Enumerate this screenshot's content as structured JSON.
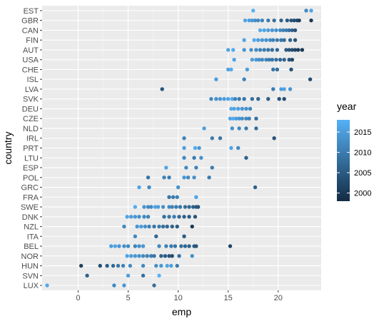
{
  "chart_data": {
    "type": "scatter",
    "xlabel": "emp",
    "ylabel": "country",
    "xlim": [
      -3.6,
      24.3
    ],
    "x_ticks": [
      0,
      5,
      10,
      15,
      20
    ],
    "x_tick_labels": [
      "0",
      "5",
      "10",
      "15",
      "20"
    ],
    "categories": [
      "EST",
      "GBR",
      "CAN",
      "FIN",
      "AUT",
      "USA",
      "CHE",
      "ISL",
      "LVA",
      "SVK",
      "DEU",
      "CZE",
      "NLD",
      "IRL",
      "PRT",
      "LTU",
      "ESP",
      "POL",
      "GRC",
      "FRA",
      "SWE",
      "DNK",
      "NZL",
      "ITA",
      "BEL",
      "NOR",
      "HUN",
      "SVN",
      "LUX"
    ],
    "grid": true,
    "legend": {
      "title": "year",
      "position": "right",
      "type": "colorbar",
      "range": [
        1998,
        2018
      ],
      "ticks": [
        2000,
        2005,
        2010,
        2015
      ],
      "tick_labels": [
        "2000",
        "2005",
        "2010",
        "2015"
      ],
      "low_color": "#132B43",
      "high_color": "#56B1F7"
    },
    "series": [
      {
        "country": "EST",
        "points": [
          [
            17.5,
            2018
          ],
          [
            22.8,
            2012
          ],
          [
            23.3,
            2016
          ]
        ]
      },
      {
        "country": "GBR",
        "points": [
          [
            16.7,
            2016
          ],
          [
            17.1,
            2015
          ],
          [
            17.4,
            2014
          ],
          [
            17.7,
            2013
          ],
          [
            18.0,
            2012
          ],
          [
            18.4,
            2011
          ],
          [
            19.0,
            2010
          ],
          [
            19.6,
            2008
          ],
          [
            20.3,
            2006
          ],
          [
            20.9,
            2005
          ],
          [
            21.3,
            2004
          ],
          [
            21.6,
            2003
          ],
          [
            21.9,
            2002
          ],
          [
            22.1,
            2001
          ],
          [
            23.3,
            2000
          ]
        ]
      },
      {
        "country": "CAN",
        "points": [
          [
            18.2,
            2017
          ],
          [
            18.6,
            2016
          ],
          [
            19.0,
            2015
          ],
          [
            19.4,
            2014
          ],
          [
            19.8,
            2013
          ],
          [
            20.2,
            2012
          ],
          [
            20.5,
            2011
          ],
          [
            20.8,
            2010
          ],
          [
            21.1,
            2008
          ],
          [
            21.4,
            2006
          ],
          [
            21.7,
            2004
          ]
        ]
      },
      {
        "country": "FIN",
        "points": [
          [
            16.6,
            2016
          ],
          [
            17.6,
            2017
          ],
          [
            18.0,
            2015
          ],
          [
            18.4,
            2014
          ],
          [
            18.8,
            2013
          ],
          [
            19.2,
            2012
          ],
          [
            19.5,
            2011
          ],
          [
            19.9,
            2010
          ],
          [
            20.3,
            2009
          ],
          [
            20.6,
            2008
          ],
          [
            21.2,
            2006
          ],
          [
            21.7,
            2004
          ]
        ]
      },
      {
        "country": "AUT",
        "points": [
          [
            15.0,
            2016
          ],
          [
            15.5,
            2017
          ],
          [
            16.6,
            2014
          ],
          [
            17.3,
            2013
          ],
          [
            17.8,
            2012
          ],
          [
            18.2,
            2011
          ],
          [
            18.6,
            2010
          ],
          [
            19.0,
            2009
          ],
          [
            19.4,
            2008
          ],
          [
            19.9,
            2007
          ],
          [
            20.8,
            2005
          ],
          [
            21.1,
            2004
          ],
          [
            21.4,
            2003
          ],
          [
            21.7,
            2002
          ],
          [
            22.0,
            2001
          ],
          [
            22.4,
            2000
          ]
        ]
      },
      {
        "country": "USA",
        "points": [
          [
            15.6,
            2016
          ],
          [
            17.4,
            2015
          ],
          [
            17.8,
            2014
          ],
          [
            18.1,
            2013
          ],
          [
            18.4,
            2012
          ],
          [
            18.8,
            2011
          ],
          [
            19.1,
            2010
          ],
          [
            19.4,
            2009
          ],
          [
            19.8,
            2008
          ],
          [
            20.2,
            2007
          ],
          [
            20.6,
            2006
          ],
          [
            21.1,
            2004
          ],
          [
            21.4,
            2002
          ]
        ]
      },
      {
        "country": "CHE",
        "points": [
          [
            15.0,
            2016
          ],
          [
            15.3,
            2017
          ],
          [
            16.9,
            2015
          ],
          [
            19.5,
            2009
          ],
          [
            19.9,
            2008
          ],
          [
            21.3,
            2004
          ]
        ]
      },
      {
        "country": "ISL",
        "points": [
          [
            13.8,
            2015
          ],
          [
            16.6,
            2011
          ],
          [
            23.2,
            2003
          ]
        ]
      },
      {
        "country": "LVA",
        "points": [
          [
            8.4,
            2004
          ],
          [
            19.5,
            2010
          ],
          [
            20.3,
            2015
          ],
          [
            20.6,
            2016
          ],
          [
            21.2,
            2014
          ]
        ]
      },
      {
        "country": "SVK",
        "points": [
          [
            13.3,
            2012
          ],
          [
            13.8,
            2013
          ],
          [
            14.2,
            2014
          ],
          [
            14.6,
            2015
          ],
          [
            15.0,
            2016
          ],
          [
            15.4,
            2017
          ],
          [
            15.7,
            2011
          ],
          [
            16.1,
            2010
          ],
          [
            16.6,
            2009
          ],
          [
            17.4,
            2008
          ],
          [
            18.0,
            2007
          ],
          [
            19.0,
            2006
          ],
          [
            20.1,
            2004
          ],
          [
            20.6,
            2003
          ]
        ]
      },
      {
        "country": "DEU",
        "points": [
          [
            15.3,
            2017
          ],
          [
            15.6,
            2016
          ],
          [
            16.0,
            2015
          ],
          [
            16.4,
            2014
          ],
          [
            16.8,
            2013
          ],
          [
            17.2,
            2012
          ]
        ]
      },
      {
        "country": "CZE",
        "points": [
          [
            15.2,
            2016
          ],
          [
            15.5,
            2017
          ],
          [
            15.8,
            2015
          ],
          [
            16.1,
            2014
          ],
          [
            16.4,
            2013
          ],
          [
            16.8,
            2012
          ],
          [
            17.1,
            2011
          ],
          [
            17.8,
            2008
          ]
        ]
      },
      {
        "country": "NLD",
        "points": [
          [
            12.6,
            2015
          ],
          [
            15.4,
            2013
          ],
          [
            16.1,
            2012
          ],
          [
            16.8,
            2010
          ],
          [
            17.8,
            2008
          ]
        ]
      },
      {
        "country": "IRL",
        "points": [
          [
            10.6,
            2011
          ],
          [
            13.4,
            2010
          ],
          [
            14.2,
            2009
          ],
          [
            19.6,
            2004
          ]
        ]
      },
      {
        "country": "PRT",
        "points": [
          [
            10.6,
            2015
          ],
          [
            11.7,
            2017
          ],
          [
            12.1,
            2014
          ],
          [
            15.3,
            2016
          ],
          [
            16.0,
            2012
          ]
        ]
      },
      {
        "country": "LTU",
        "points": [
          [
            10.6,
            2012
          ],
          [
            11.6,
            2010
          ],
          [
            12.3,
            2013
          ],
          [
            16.8,
            2006
          ]
        ]
      },
      {
        "country": "ESP",
        "points": [
          [
            8.8,
            2016
          ],
          [
            10.8,
            2012
          ],
          [
            11.8,
            2011
          ],
          [
            13.4,
            2010
          ]
        ]
      },
      {
        "country": "POL",
        "points": [
          [
            7.0,
            2009
          ],
          [
            8.6,
            2011
          ],
          [
            9.1,
            2010
          ],
          [
            10.6,
            2014
          ],
          [
            11.0,
            2012
          ],
          [
            11.6,
            2013
          ],
          [
            13.1,
            2010
          ]
        ]
      },
      {
        "country": "GRC",
        "points": [
          [
            6.1,
            2016
          ],
          [
            7.1,
            2012
          ],
          [
            10.0,
            2013
          ],
          [
            17.7,
            2006
          ]
        ]
      },
      {
        "country": "FRA",
        "points": [
          [
            9.1,
            2009
          ],
          [
            9.5,
            2010
          ],
          [
            9.9,
            2011
          ],
          [
            11.8,
            2016
          ]
        ]
      },
      {
        "country": "SWE",
        "points": [
          [
            5.7,
            2017
          ],
          [
            6.6,
            2014
          ],
          [
            7.0,
            2012
          ],
          [
            7.3,
            2012
          ],
          [
            7.7,
            2016
          ],
          [
            8.0,
            2015
          ],
          [
            8.5,
            2013
          ],
          [
            9.1,
            2012
          ],
          [
            9.4,
            2011
          ],
          [
            9.8,
            2010
          ],
          [
            10.2,
            2009
          ],
          [
            10.7,
            2008
          ],
          [
            11.1,
            2007
          ],
          [
            11.5,
            2006
          ],
          [
            11.8,
            2005
          ],
          [
            12.0,
            2004
          ]
        ]
      },
      {
        "country": "DNK",
        "points": [
          [
            4.9,
            2016
          ],
          [
            5.3,
            2015
          ],
          [
            5.7,
            2014
          ],
          [
            6.1,
            2013
          ],
          [
            6.6,
            2012
          ],
          [
            7.0,
            2011
          ],
          [
            8.6,
            2008
          ],
          [
            9.1,
            2009
          ],
          [
            9.6,
            2010
          ],
          [
            10.1,
            2007
          ],
          [
            10.6,
            2006
          ],
          [
            11.1,
            2005
          ],
          [
            11.7,
            2004
          ]
        ]
      },
      {
        "country": "NZL",
        "points": [
          [
            4.6,
            2012
          ],
          [
            5.9,
            2014
          ],
          [
            6.3,
            2015
          ],
          [
            6.7,
            2013
          ],
          [
            7.1,
            2011
          ],
          [
            7.6,
            2009
          ],
          [
            8.1,
            2010
          ],
          [
            8.5,
            2008
          ],
          [
            8.9,
            2007
          ],
          [
            9.4,
            2006
          ],
          [
            9.9,
            2005
          ],
          [
            11.4,
            2000
          ]
        ]
      },
      {
        "country": "ITA",
        "points": [
          [
            5.7,
            2012
          ],
          [
            7.8,
            2007
          ],
          [
            10.6,
            2005
          ]
        ]
      },
      {
        "country": "BEL",
        "points": [
          [
            3.3,
            2015
          ],
          [
            3.7,
            2016
          ],
          [
            4.1,
            2014
          ],
          [
            4.6,
            2013
          ],
          [
            5.0,
            2012
          ],
          [
            5.7,
            2011
          ],
          [
            6.1,
            2013
          ],
          [
            6.5,
            2014
          ],
          [
            8.1,
            2012
          ],
          [
            8.8,
            2011
          ],
          [
            9.3,
            2010
          ],
          [
            9.7,
            2009
          ],
          [
            10.3,
            2008
          ],
          [
            10.7,
            2007
          ],
          [
            11.1,
            2006
          ],
          [
            11.6,
            2005
          ],
          [
            11.8,
            2004
          ],
          [
            15.2,
            2002
          ]
        ]
      },
      {
        "country": "NOR",
        "points": [
          [
            4.9,
            2016
          ],
          [
            5.3,
            2015
          ],
          [
            5.7,
            2014
          ],
          [
            6.1,
            2013
          ],
          [
            6.5,
            2012
          ],
          [
            6.9,
            2011
          ],
          [
            7.3,
            2010
          ],
          [
            7.6,
            2009
          ],
          [
            8.3,
            2006
          ],
          [
            8.7,
            2005
          ],
          [
            9.1,
            2004
          ],
          [
            9.4,
            2003
          ],
          [
            10.1,
            2008
          ],
          [
            11.4,
            2013
          ]
        ]
      },
      {
        "country": "HUN",
        "points": [
          [
            0.3,
            2001
          ],
          [
            2.2,
            2003
          ],
          [
            2.9,
            2005
          ],
          [
            3.5,
            2007
          ],
          [
            4.0,
            2009
          ],
          [
            4.5,
            2011
          ],
          [
            5.2,
            2012
          ],
          [
            6.5,
            2012
          ],
          [
            7.8,
            2013
          ],
          [
            8.3,
            2014
          ],
          [
            8.9,
            2016
          ],
          [
            9.3,
            2015
          ],
          [
            9.9,
            2010
          ]
        ]
      },
      {
        "country": "SVN",
        "points": [
          [
            0.9,
            2006
          ],
          [
            5.0,
            2015
          ],
          [
            6.5,
            2008
          ],
          [
            8.1,
            2018
          ]
        ]
      },
      {
        "country": "LUX",
        "points": [
          [
            -3.1,
            2017
          ],
          [
            3.6,
            2012
          ],
          [
            4.6,
            2014
          ],
          [
            7.6,
            2008
          ]
        ]
      }
    ]
  }
}
